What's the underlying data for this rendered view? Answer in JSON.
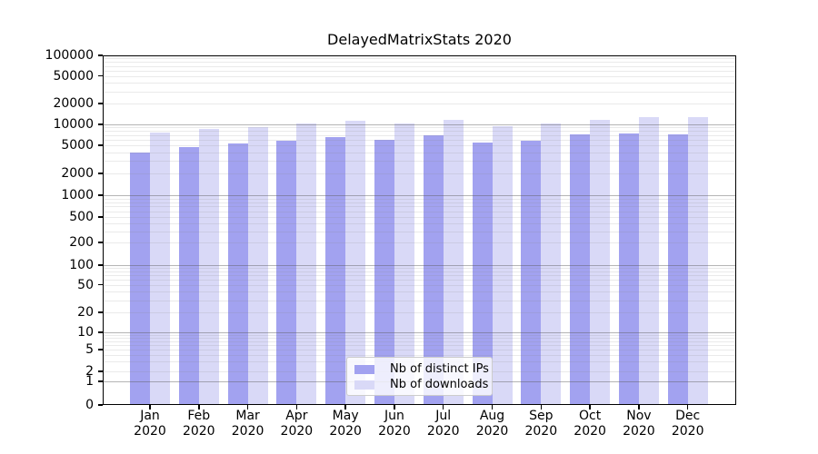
{
  "title": "DelayedMatrixStats 2020",
  "colors": {
    "ips": "#a2a2f0",
    "downloads": "#d9d9f7",
    "axis": "#000000",
    "grid_major": "rgba(90,90,90,0.45)",
    "grid_minor": "rgba(140,140,140,0.18)"
  },
  "legend": {
    "items": [
      {
        "label": "Nb of distinct IPs",
        "series": "ips"
      },
      {
        "label": "Nb of downloads",
        "series": "downloads"
      }
    ]
  },
  "chart_data": {
    "type": "bar",
    "title": "DelayedMatrixStats 2020",
    "categories": [
      "Jan",
      "Feb",
      "Mar",
      "Apr",
      "May",
      "Jun",
      "Jul",
      "Aug",
      "Sep",
      "Oct",
      "Nov",
      "Dec"
    ],
    "year": "2020",
    "series": [
      {
        "name": "Nb of distinct IPs",
        "values": [
          3900,
          4650,
          5250,
          5800,
          6600,
          6000,
          7050,
          5450,
          5800,
          7150,
          7300,
          7250
        ]
      },
      {
        "name": "Nb of downloads",
        "values": [
          7700,
          8600,
          9250,
          10300,
          11400,
          10200,
          11700,
          9500,
          10250,
          11700,
          12800,
          12700
        ]
      }
    ],
    "yscale": "log (with 0 baseline, symlog-style)",
    "ylim": [
      0,
      100000
    ],
    "yticks": [
      100000,
      50000,
      20000,
      10000,
      5000,
      2000,
      1000,
      500,
      200,
      100,
      50,
      20,
      10,
      5,
      2,
      1,
      0
    ],
    "grid": "horizontal major (decades, darker) + minor (2-9 multiples, faint), drawn over bars",
    "legend_position": "lower center"
  }
}
